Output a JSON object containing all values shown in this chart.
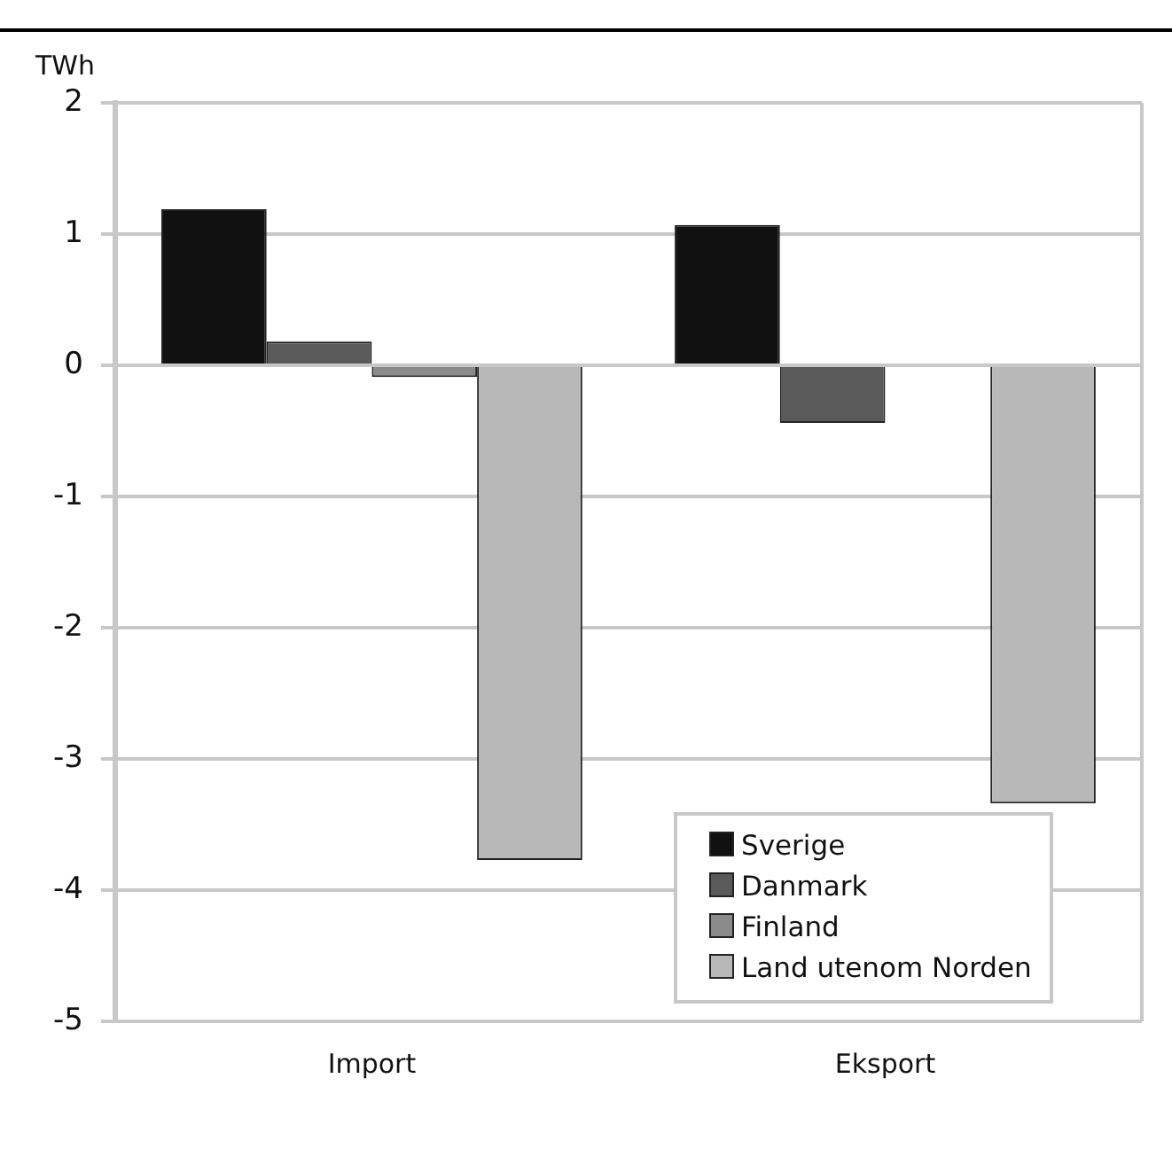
{
  "chart_data": {
    "type": "bar",
    "ylabel": "TWh",
    "categories": [
      "Import",
      "Eksport"
    ],
    "series": [
      {
        "name": "Sverige",
        "color": "#111111",
        "values": [
          1.19,
          1.07
        ]
      },
      {
        "name": "Danmark",
        "color": "#5a5a5a",
        "values": [
          0.18,
          -0.44
        ]
      },
      {
        "name": "Finland",
        "color": "#8a8a8a",
        "values": [
          -0.09,
          0
        ]
      },
      {
        "name": "Land utenom Norden",
        "color": "#b8b8b8",
        "values": [
          -3.77,
          -3.34
        ]
      }
    ],
    "ylim": [
      -5,
      2
    ],
    "yticks": [
      -5,
      -4,
      -3,
      -2,
      -1,
      0,
      1,
      2
    ],
    "grid": "y",
    "legend": "bottom right"
  }
}
